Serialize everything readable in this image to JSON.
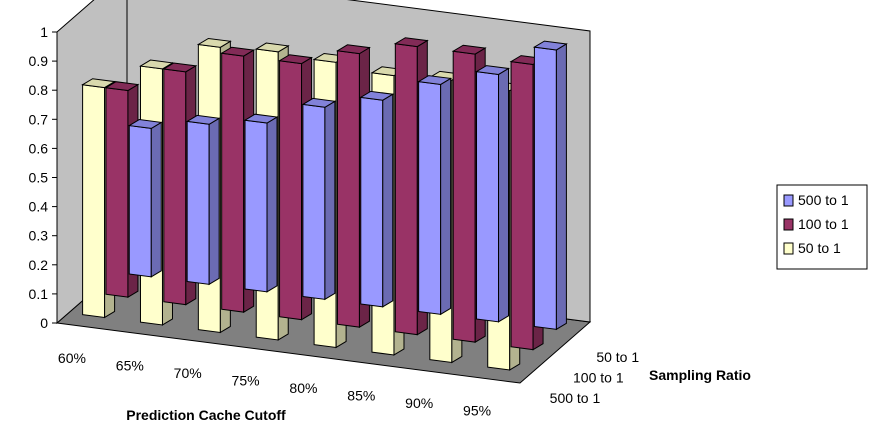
{
  "chart_data": {
    "type": "bar",
    "subtype": "3d-clustered-depth",
    "title": "",
    "xlabel": "Prediction Cache Cutoff",
    "zlabel": "Sampling Ratio",
    "ylabel": "",
    "ylim": [
      0,
      1
    ],
    "yticks": [
      "0",
      "0.1",
      "0.2",
      "0.3",
      "0.4",
      "0.5",
      "0.6",
      "0.7",
      "0.8",
      "0.9",
      "1"
    ],
    "categories": [
      "60%",
      "65%",
      "70%",
      "75%",
      "80%",
      "85%",
      "90%",
      "95%"
    ],
    "depth_labels": [
      "50  to  1",
      "100  to  1",
      "500  to  1"
    ],
    "grid": false,
    "legend_position": "right",
    "series": [
      {
        "name": "500  to  1",
        "color": "#9999ff",
        "values": [
          0.51,
          0.55,
          0.58,
          0.66,
          0.71,
          0.79,
          0.85,
          0.96
        ]
      },
      {
        "name": "100  to  1",
        "color": "#993366",
        "values": [
          0.71,
          0.8,
          0.88,
          0.88,
          0.94,
          0.99,
          0.99,
          0.98
        ]
      },
      {
        "name": "50  to  1",
        "color": "#ffffcc",
        "values": [
          0.79,
          0.88,
          0.98,
          0.99,
          0.98,
          0.96,
          0.97,
          0.96
        ]
      }
    ]
  }
}
